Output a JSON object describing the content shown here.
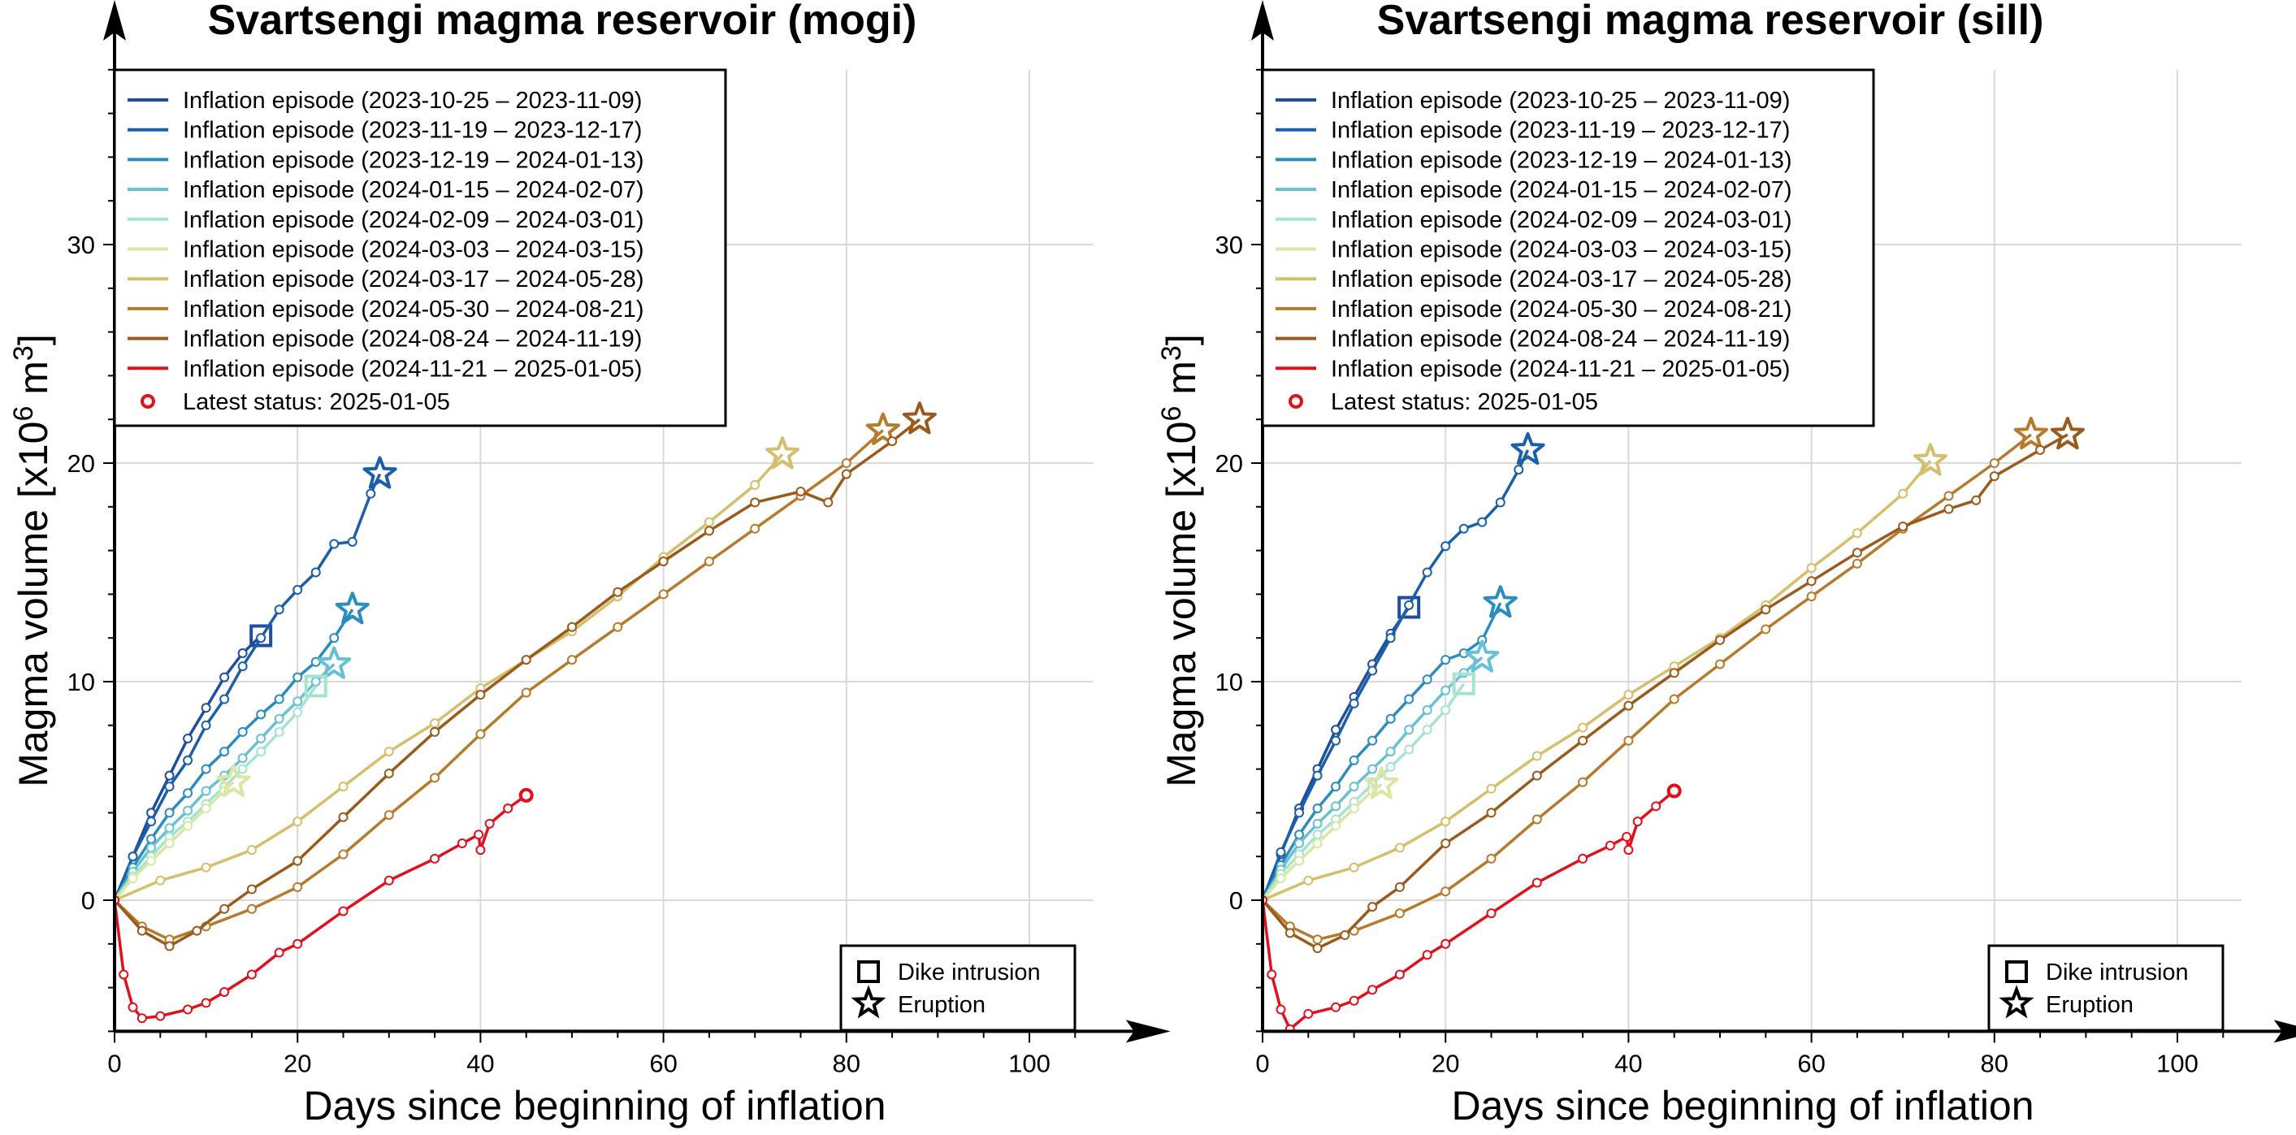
{
  "colors": {
    "ep1": "#1f4e9e",
    "ep2": "#1a5fa8",
    "ep3": "#2b8cbe",
    "ep4": "#67c1d3",
    "ep5": "#a6e3cf",
    "ep6": "#d9e6a6",
    "ep7": "#d4bf6b",
    "ep8": "#b57a2c",
    "ep9": "#9a5a1c",
    "ep10": "#e0101c",
    "latest": "#e0101c"
  },
  "legend": {
    "entries": [
      "Inflation episode (2023-10-25 – 2023-11-09)",
      "Inflation episode (2023-11-19 – 2023-12-17)",
      "Inflation episode (2023-12-19 – 2024-01-13)",
      "Inflation episode (2024-01-15 – 2024-02-07)",
      "Inflation episode (2024-02-09 – 2024-03-01)",
      "Inflation episode (2024-03-03 – 2024-03-15)",
      "Inflation episode (2024-03-17 – 2024-05-28)",
      "Inflation episode (2024-05-30 – 2024-08-21)",
      "Inflation episode (2024-08-24 – 2024-11-19)",
      "Inflation episode (2024-11-21 – 2025-01-05)"
    ],
    "latest": "Latest status: 2025-01-05",
    "dike": "Dike intrusion",
    "eruption": "Eruption"
  },
  "chart_data": [
    {
      "type": "line",
      "title": "Svartsengi magma reservoir (mogi)",
      "xlabel": "Days since beginning of inflation",
      "ylabel_pre": "Magma volume [x10",
      "ylabel_sup1": "6",
      "ylabel_mid": " m",
      "ylabel_sup2": "3",
      "ylabel_post": "]",
      "xlim": [
        0,
        107
      ],
      "ylim": [
        -6,
        38
      ],
      "xticks": [
        "0",
        "20",
        "40",
        "60",
        "80",
        "100"
      ],
      "yticks": [
        "0",
        "10",
        "20",
        "30"
      ],
      "grid": true,
      "legend_position": "top-left",
      "series": [
        {
          "name": "Inflation episode (2023-10-25 – 2023-11-09)",
          "end": "dike",
          "x": [
            0,
            2,
            4,
            6,
            8,
            10,
            12,
            14,
            16
          ],
          "y": [
            0,
            2,
            4,
            5.7,
            7.4,
            8.8,
            10.2,
            11.3,
            12.1
          ]
        },
        {
          "name": "Inflation episode (2023-11-19 – 2023-12-17)",
          "end": "eruption",
          "x": [
            0,
            2,
            4,
            6,
            8,
            10,
            12,
            14,
            16,
            18,
            20,
            22,
            24,
            26,
            28,
            29
          ],
          "y": [
            0,
            2,
            3.6,
            5.2,
            6.4,
            8,
            9.2,
            10.7,
            12,
            13.3,
            14.2,
            15,
            16.3,
            16.4,
            18.6,
            19.5
          ]
        },
        {
          "name": "Inflation episode (2023-12-19 – 2024-01-13)",
          "end": "eruption",
          "x": [
            0,
            2,
            4,
            6,
            8,
            10,
            12,
            14,
            16,
            18,
            20,
            22,
            24,
            26
          ],
          "y": [
            0,
            1.5,
            2.8,
            4,
            4.9,
            6,
            6.8,
            7.7,
            8.5,
            9.2,
            10.2,
            10.9,
            12,
            13.3
          ]
        },
        {
          "name": "Inflation episode (2024-01-15 – 2024-02-07)",
          "end": "eruption",
          "x": [
            0,
            2,
            4,
            6,
            8,
            10,
            12,
            14,
            16,
            18,
            20,
            22,
            24
          ],
          "y": [
            0,
            1.3,
            2.4,
            3.3,
            4.1,
            5,
            5.7,
            6.5,
            7.4,
            8.3,
            9.1,
            10,
            10.8
          ]
        },
        {
          "name": "Inflation episode (2024-02-09 – 2024-03-01)",
          "end": "dike",
          "x": [
            0,
            2,
            4,
            6,
            8,
            10,
            12,
            14,
            16,
            18,
            20,
            22
          ],
          "y": [
            0,
            1.1,
            2,
            2.9,
            3.6,
            4.4,
            5.2,
            6,
            6.8,
            7.7,
            8.6,
            9.8
          ]
        },
        {
          "name": "Inflation episode (2024-03-03 – 2024-03-15)",
          "end": "eruption",
          "x": [
            0,
            2,
            4,
            6,
            8,
            10,
            12,
            13
          ],
          "y": [
            0,
            1,
            1.8,
            2.6,
            3.4,
            4.2,
            5,
            5.4
          ]
        },
        {
          "name": "Inflation episode (2024-03-17 – 2024-05-28)",
          "end": "eruption",
          "x": [
            0,
            5,
            10,
            15,
            20,
            25,
            30,
            35,
            40,
            45,
            50,
            55,
            60,
            65,
            70,
            73
          ],
          "y": [
            0,
            0.9,
            1.5,
            2.3,
            3.6,
            5.2,
            6.8,
            8.1,
            9.7,
            11,
            12.3,
            13.9,
            15.7,
            17.3,
            19,
            20.4
          ]
        },
        {
          "name": "Inflation episode (2024-05-30 – 2024-08-21)",
          "end": "eruption",
          "x": [
            0,
            3,
            6,
            10,
            15,
            20,
            25,
            30,
            35,
            40,
            45,
            50,
            55,
            60,
            65,
            70,
            75,
            80,
            84
          ],
          "y": [
            0,
            -1.2,
            -1.8,
            -1.2,
            -0.4,
            0.6,
            2.1,
            3.9,
            5.6,
            7.6,
            9.5,
            11,
            12.5,
            14,
            15.5,
            17,
            18.5,
            20,
            21.5
          ]
        },
        {
          "name": "Inflation episode (2024-08-24 – 2024-11-19)",
          "end": "eruption",
          "x": [
            0,
            3,
            6,
            9,
            12,
            15,
            20,
            25,
            30,
            35,
            40,
            45,
            50,
            55,
            60,
            65,
            70,
            75,
            78,
            80,
            85,
            88
          ],
          "y": [
            0,
            -1.4,
            -2.1,
            -1.4,
            -0.4,
            0.5,
            1.8,
            3.8,
            5.8,
            7.7,
            9.4,
            11,
            12.5,
            14.1,
            15.5,
            16.9,
            18.2,
            18.7,
            18.2,
            19.5,
            21,
            22
          ]
        },
        {
          "name": "Inflation episode (2024-11-21 – 2025-01-05)",
          "end": "latest",
          "x": [
            0,
            1,
            2,
            3,
            5,
            8,
            10,
            12,
            15,
            18,
            20,
            25,
            30,
            35,
            38,
            39.8,
            40,
            41,
            43,
            45
          ],
          "y": [
            0,
            -3.4,
            -4.9,
            -5.4,
            -5.3,
            -5,
            -4.7,
            -4.2,
            -3.4,
            -2.4,
            -2,
            -0.5,
            0.9,
            1.9,
            2.6,
            3,
            2.3,
            3.5,
            4.2,
            4.8
          ]
        }
      ]
    },
    {
      "type": "line",
      "title": "Svartsengi magma reservoir (sill)",
      "xlabel": "Days since beginning of inflation",
      "ylabel_pre": "Magma volume [x10",
      "ylabel_sup1": "6",
      "ylabel_mid": " m",
      "ylabel_sup2": "3",
      "ylabel_post": "]",
      "xlim": [
        0,
        107
      ],
      "ylim": [
        -6,
        38
      ],
      "xticks": [
        "0",
        "20",
        "40",
        "60",
        "80",
        "100"
      ],
      "yticks": [
        "0",
        "10",
        "20",
        "30"
      ],
      "grid": true,
      "legend_position": "top-left",
      "series": [
        {
          "name": "Inflation episode (2023-10-25 – 2023-11-09)",
          "end": "dike",
          "x": [
            0,
            2,
            4,
            6,
            8,
            10,
            12,
            14,
            16
          ],
          "y": [
            0,
            2.1,
            4.2,
            6,
            7.8,
            9.3,
            10.8,
            12.2,
            13.4
          ]
        },
        {
          "name": "Inflation episode (2023-11-19 – 2023-12-17)",
          "end": "eruption",
          "x": [
            0,
            2,
            4,
            6,
            8,
            10,
            12,
            14,
            16,
            18,
            20,
            22,
            24,
            26,
            28,
            29
          ],
          "y": [
            0,
            2.2,
            4,
            5.7,
            7.3,
            9,
            10.5,
            12,
            13.5,
            15,
            16.2,
            17,
            17.3,
            18.2,
            19.7,
            20.6
          ]
        },
        {
          "name": "Inflation episode (2023-12-19 – 2024-01-13)",
          "end": "eruption",
          "x": [
            0,
            2,
            4,
            6,
            8,
            10,
            12,
            14,
            16,
            18,
            20,
            22,
            24,
            26
          ],
          "y": [
            0,
            1.6,
            3,
            4.2,
            5.2,
            6.4,
            7.3,
            8.3,
            9.2,
            10.1,
            11,
            11.3,
            11.9,
            13.6
          ]
        },
        {
          "name": "Inflation episode (2024-01-15 – 2024-02-07)",
          "end": "eruption",
          "x": [
            0,
            2,
            4,
            6,
            8,
            10,
            12,
            14,
            16,
            18,
            20,
            22,
            24
          ],
          "y": [
            0,
            1.4,
            2.6,
            3.5,
            4.3,
            5.2,
            6,
            6.8,
            7.8,
            8.7,
            9.6,
            10.4,
            11.1
          ]
        },
        {
          "name": "Inflation episode (2024-02-09 – 2024-03-01)",
          "end": "dike",
          "x": [
            0,
            2,
            4,
            6,
            8,
            10,
            12,
            14,
            16,
            18,
            20,
            22
          ],
          "y": [
            0,
            1.2,
            2.1,
            3,
            3.7,
            4.5,
            5.3,
            6.1,
            6.9,
            7.8,
            8.7,
            9.9
          ]
        },
        {
          "name": "Inflation episode (2024-03-03 – 2024-03-15)",
          "end": "eruption",
          "x": [
            0,
            2,
            4,
            6,
            8,
            10,
            12,
            13
          ],
          "y": [
            0,
            1,
            1.8,
            2.6,
            3.4,
            4.2,
            5,
            5.3
          ]
        },
        {
          "name": "Inflation episode (2024-03-17 – 2024-05-28)",
          "end": "eruption",
          "x": [
            0,
            5,
            10,
            15,
            20,
            25,
            30,
            35,
            40,
            45,
            50,
            55,
            60,
            65,
            70,
            73
          ],
          "y": [
            0,
            0.9,
            1.5,
            2.4,
            3.6,
            5.1,
            6.6,
            7.9,
            9.4,
            10.7,
            12,
            13.5,
            15.2,
            16.8,
            18.6,
            20.1
          ]
        },
        {
          "name": "Inflation episode (2024-05-30 – 2024-08-21)",
          "end": "eruption",
          "x": [
            0,
            3,
            6,
            10,
            15,
            20,
            25,
            30,
            35,
            40,
            45,
            50,
            55,
            60,
            65,
            70,
            75,
            80,
            84
          ],
          "y": [
            0,
            -1.2,
            -1.8,
            -1.4,
            -0.6,
            0.4,
            1.9,
            3.7,
            5.4,
            7.3,
            9.2,
            10.8,
            12.4,
            13.9,
            15.4,
            17,
            18.5,
            20,
            21.3
          ]
        },
        {
          "name": "Inflation episode (2024-08-24 – 2024-11-19)",
          "end": "eruption",
          "x": [
            0,
            3,
            6,
            9,
            12,
            15,
            20,
            25,
            30,
            35,
            40,
            45,
            50,
            55,
            60,
            65,
            70,
            75,
            78,
            80,
            85,
            88
          ],
          "y": [
            0,
            -1.5,
            -2.2,
            -1.6,
            -0.3,
            0.6,
            2.6,
            4,
            5.7,
            7.3,
            8.9,
            10.4,
            11.9,
            13.3,
            14.6,
            15.9,
            17.1,
            17.9,
            18.3,
            19.4,
            20.6,
            21.3
          ]
        },
        {
          "name": "Inflation episode (2024-11-21 – 2025-01-05)",
          "end": "latest",
          "x": [
            0,
            1,
            2,
            3,
            5,
            8,
            10,
            12,
            15,
            18,
            20,
            25,
            30,
            35,
            38,
            39.8,
            40,
            41,
            43,
            45
          ],
          "y": [
            0,
            -3.4,
            -5,
            -5.9,
            -5.2,
            -4.9,
            -4.6,
            -4.1,
            -3.4,
            -2.5,
            -2,
            -0.6,
            0.8,
            1.9,
            2.5,
            2.9,
            2.3,
            3.6,
            4.3,
            5
          ]
        }
      ]
    }
  ]
}
